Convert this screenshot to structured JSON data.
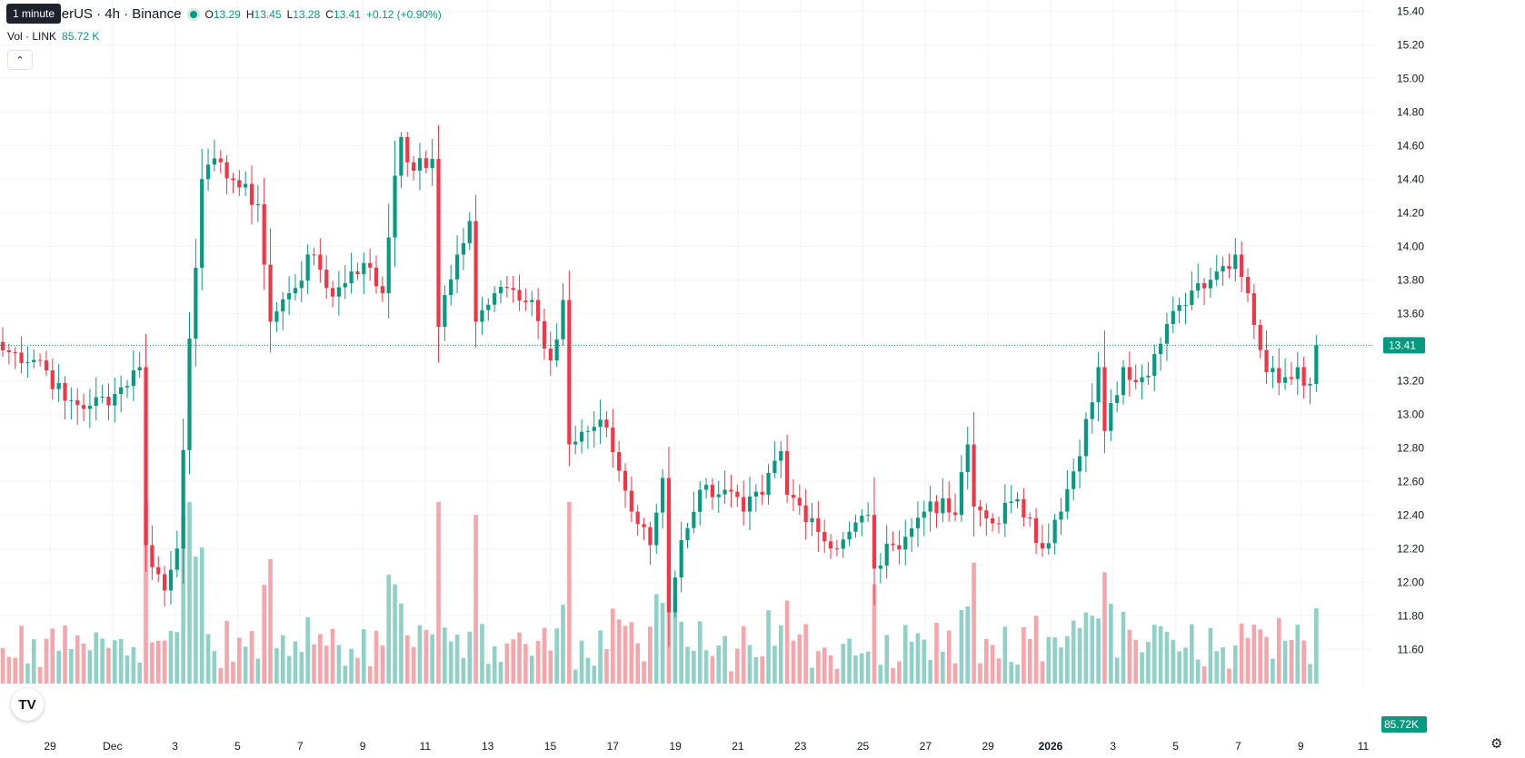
{
  "legend": {
    "symbol": "ink / TetherUS · 4h · Binance",
    "open_label": "O",
    "open": "13.29",
    "high_label": "H",
    "high": "13.45",
    "low_label": "L",
    "low": "13.28",
    "close_label": "C",
    "close": "13.41",
    "change": "+0.12 (+0.90%)"
  },
  "volume_legend": {
    "label": "Vol · LINK",
    "value": "85.72 K"
  },
  "tooltip": "1 minute",
  "logo_text": "TV",
  "icons": {
    "collapse": "chevron-up-icon",
    "settings": "gear-icon",
    "logo": "tradingview-logo-icon"
  },
  "colors": {
    "up": "#089981",
    "down": "#f23645",
    "up_vol": "#8fd1c6",
    "down_vol": "#f6a6ab",
    "grid": "#f0f3fa",
    "axis_text": "#131722"
  },
  "chart_data": {
    "type": "candlestick",
    "y_axis": {
      "min": 11.45,
      "max": 15.45,
      "ticks": [
        11.6,
        11.8,
        12.0,
        12.2,
        12.4,
        12.6,
        12.8,
        13.0,
        13.2,
        13.4,
        13.6,
        13.8,
        14.0,
        14.2,
        14.4,
        14.6,
        14.8,
        15.0,
        15.2,
        15.4
      ]
    },
    "x_axis": {
      "labels": [
        "29",
        "Dec",
        "3",
        "5",
        "7",
        "9",
        "11",
        "13",
        "15",
        "17",
        "19",
        "21",
        "23",
        "25",
        "27",
        "29",
        "2026",
        "3",
        "5",
        "7",
        "9",
        "11"
      ],
      "bold_labels": [
        "2026"
      ]
    },
    "last_price_label": "13.41",
    "last_volume_label": "85.72K",
    "grid": true,
    "series": [
      {
        "name": "price",
        "anchors": [
          [
            0,
            13.38
          ],
          [
            6,
            13.32
          ],
          [
            10,
            13.08
          ],
          [
            14,
            13.05
          ],
          [
            18,
            13.12
          ],
          [
            22,
            13.28
          ],
          [
            23,
            12.22
          ],
          [
            26,
            11.95
          ],
          [
            28,
            12.2
          ],
          [
            30,
            13.45
          ],
          [
            32,
            14.4
          ],
          [
            35,
            14.5
          ],
          [
            38,
            14.35
          ],
          [
            41,
            14.25
          ],
          [
            43,
            13.55
          ],
          [
            46,
            13.72
          ],
          [
            50,
            13.95
          ],
          [
            53,
            13.7
          ],
          [
            56,
            13.85
          ],
          [
            58,
            13.9
          ],
          [
            61,
            13.72
          ],
          [
            63,
            14.42
          ],
          [
            64,
            14.65
          ],
          [
            66,
            14.45
          ],
          [
            69,
            14.52
          ],
          [
            70,
            13.52
          ],
          [
            73,
            13.95
          ],
          [
            75,
            14.15
          ],
          [
            76,
            13.55
          ],
          [
            79,
            13.72
          ],
          [
            82,
            13.74
          ],
          [
            85,
            13.68
          ],
          [
            88,
            13.32
          ],
          [
            90,
            13.68
          ],
          [
            91,
            12.82
          ],
          [
            94,
            12.9
          ],
          [
            97,
            12.92
          ],
          [
            101,
            12.42
          ],
          [
            104,
            12.22
          ],
          [
            106,
            12.62
          ],
          [
            107,
            11.82
          ],
          [
            109,
            12.25
          ],
          [
            112,
            12.55
          ],
          [
            116,
            12.55
          ],
          [
            119,
            12.42
          ],
          [
            122,
            12.52
          ],
          [
            125,
            12.78
          ],
          [
            126,
            12.52
          ],
          [
            130,
            12.38
          ],
          [
            133,
            12.2
          ],
          [
            136,
            12.3
          ],
          [
            139,
            12.4
          ],
          [
            140,
            12.08
          ],
          [
            143,
            12.22
          ],
          [
            146,
            12.32
          ],
          [
            149,
            12.48
          ],
          [
            153,
            12.4
          ],
          [
            155,
            12.82
          ],
          [
            156,
            12.45
          ],
          [
            159,
            12.35
          ],
          [
            162,
            12.48
          ],
          [
            165,
            12.38
          ],
          [
            167,
            12.2
          ],
          [
            170,
            12.42
          ],
          [
            173,
            12.75
          ],
          [
            176,
            13.28
          ],
          [
            177,
            12.9
          ],
          [
            180,
            13.28
          ],
          [
            183,
            13.22
          ],
          [
            186,
            13.42
          ],
          [
            189,
            13.65
          ],
          [
            192,
            13.78
          ],
          [
            195,
            13.85
          ],
          [
            198,
            13.95
          ],
          [
            200,
            13.72
          ],
          [
            203,
            13.25
          ],
          [
            206,
            13.22
          ],
          [
            208,
            13.28
          ],
          [
            210,
            13.18
          ],
          [
            211,
            13.41
          ]
        ]
      }
    ]
  }
}
